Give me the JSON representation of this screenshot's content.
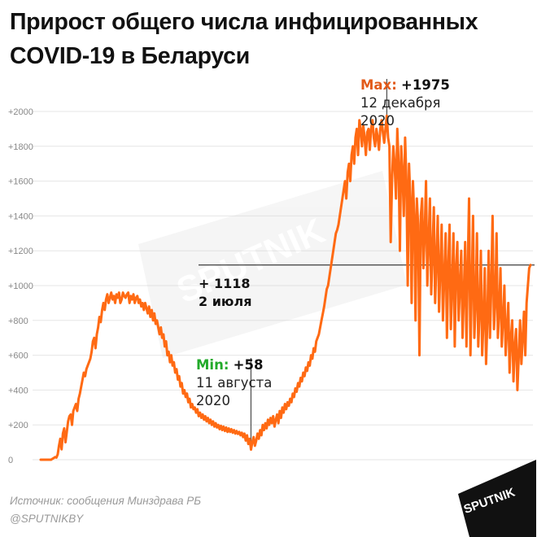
{
  "title": "Прирост общего числа инфицированных COVID-19 в Беларуси",
  "source": "Источник: сообщения Минздрава РБ",
  "handle": "@SPUTNIKBY",
  "watermark": "SPUTNIK",
  "badge_text": "SPUTNIK",
  "colors": {
    "line": "#ff6a13",
    "max_label": "#e25a19",
    "min_label": "#22aa2a",
    "axis_text": "#888888",
    "grid": "#e6e6e6"
  },
  "annotations": {
    "max": {
      "label": "Max:",
      "value": "+1975",
      "date": "12 декабря",
      "year": "2020"
    },
    "min": {
      "label": "Min:",
      "value": "+58",
      "date": "11 августа",
      "year": "2020"
    },
    "ref": {
      "value": "+ 1118",
      "date": "2 июля"
    }
  },
  "chart_data": {
    "type": "line",
    "title": "Прирост общего числа инфицированных COVID-19 в Беларуси",
    "xlabel": "",
    "ylabel": "",
    "ylim": [
      0,
      2100
    ],
    "yticks": [
      "0",
      "+200",
      "+400",
      "+600",
      "+800",
      "+1000",
      "+1200",
      "+1400",
      "+1600",
      "+1800",
      "+2000"
    ],
    "grid": true,
    "reference_line": 1118,
    "series": [
      {
        "values": [
          0,
          0,
          0,
          0,
          0,
          0,
          0,
          0,
          0,
          5,
          10,
          15,
          12,
          30,
          80,
          120,
          60,
          150,
          180,
          100,
          160,
          220,
          250,
          260,
          200,
          280,
          300,
          320,
          280,
          350,
          380,
          420,
          460,
          500,
          480,
          520,
          540,
          560,
          580,
          620,
          680,
          700,
          640,
          720,
          760,
          820,
          790,
          860,
          900,
          860,
          920,
          950,
          900,
          930,
          960,
          920,
          940,
          900,
          950,
          930,
          960,
          900,
          920,
          960,
          940,
          930,
          950,
          960,
          900,
          940,
          920,
          950,
          900,
          930,
          940,
          900,
          920,
          880,
          900,
          860,
          900,
          870,
          840,
          880,
          820,
          860,
          800,
          840,
          780,
          800,
          760,
          720,
          760,
          700,
          720,
          650,
          680,
          600,
          620,
          560,
          600,
          540,
          560,
          500,
          520,
          460,
          480,
          420,
          440,
          380,
          400,
          360,
          380,
          330,
          350,
          300,
          320,
          290,
          300,
          270,
          290,
          250,
          270,
          240,
          260,
          230,
          250,
          220,
          240,
          210,
          230,
          200,
          220,
          190,
          210,
          185,
          200,
          175,
          195,
          170,
          190,
          165,
          185,
          160,
          180,
          160,
          175,
          155,
          170,
          150,
          165,
          148,
          160,
          140,
          155,
          130,
          150,
          110,
          140,
          90,
          120,
          58,
          100,
          130,
          80,
          110,
          150,
          120,
          170,
          140,
          200,
          170,
          210,
          180,
          230,
          200,
          240,
          210,
          250,
          190,
          230,
          260,
          210,
          280,
          240,
          300,
          270,
          320,
          290,
          330,
          310,
          350,
          330,
          380,
          360,
          410,
          390,
          440,
          420,
          470,
          450,
          500,
          480,
          530,
          510,
          560,
          540,
          600,
          580,
          640,
          620,
          680,
          700,
          720,
          760,
          800,
          840,
          880,
          930,
          980,
          1000,
          1050,
          1100,
          1150,
          1200,
          1250,
          1300,
          1320,
          1350,
          1400,
          1450,
          1500,
          1550,
          1600,
          1500,
          1650,
          1700,
          1600,
          1750,
          1800,
          1700,
          1850,
          1900,
          1750,
          1950,
          1900,
          1800,
          1920,
          1850,
          1750,
          1880,
          1900,
          1780,
          1900,
          1950,
          1850,
          1800,
          1900,
          1850,
          1780,
          1900,
          1950,
          1880,
          1820,
          1900,
          1975,
          1850,
          1800,
          1250,
          1600,
          1800,
          1700,
          1500,
          1900,
          1700,
          1200,
          1800,
          1650,
          1400,
          1850,
          1600,
          1000,
          1700,
          1500,
          900,
          1600,
          1400,
          800,
          1500,
          1350,
          600,
          1400,
          1500,
          1100,
          1300,
          1600,
          1000,
          1250,
          1500,
          950,
          1200,
          1450,
          900,
          1150,
          1400,
          850,
          1100,
          1350,
          800,
          1050,
          1300,
          700,
          1100,
          1350,
          750,
          1000,
          1300,
          650,
          1100,
          1250,
          800,
          1000,
          1200,
          700,
          950,
          1250,
          650,
          1100,
          1500,
          600,
          1000,
          1400,
          700,
          900,
          1300,
          650,
          850,
          1200,
          600,
          800,
          1100,
          550,
          800,
          1200,
          700,
          1000,
          1400,
          750,
          900,
          1300,
          700,
          850,
          1100,
          650,
          800,
          1000,
          600,
          750,
          900,
          500,
          700,
          800,
          450,
          650,
          750,
          400,
          600,
          800,
          550,
          700,
          850,
          600,
          900,
          1000,
          1100,
          1118
        ]
      }
    ]
  }
}
